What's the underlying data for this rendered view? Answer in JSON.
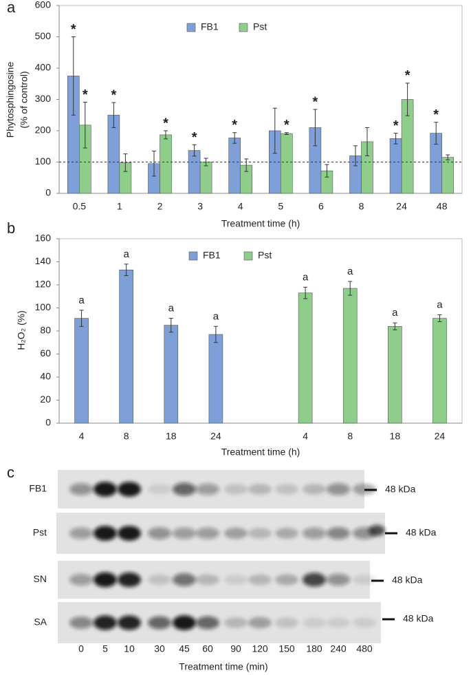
{
  "chart_data": [
    {
      "type": "bar",
      "panel_label": "a",
      "ylabel": [
        "Phytosphingosine",
        "(% of control)"
      ],
      "xlabel": "Treatment time (h)",
      "categories": [
        "0.5",
        "1",
        "2",
        "3",
        "4",
        "5",
        "6",
        "8",
        "24",
        "48"
      ],
      "series": [
        {
          "name": "FB1",
          "color": "#7f9fd8",
          "values": [
            375,
            250,
            95,
            137,
            177,
            200,
            210,
            120,
            175,
            192
          ],
          "errors": [
            125,
            40,
            40,
            18,
            17,
            72,
            58,
            32,
            17,
            35
          ],
          "labels": [
            "*",
            "*",
            null,
            "*",
            "*",
            null,
            "*",
            null,
            "*",
            "*"
          ]
        },
        {
          "name": "Pst",
          "color": "#8fcd8b",
          "values": [
            218,
            98,
            187,
            100,
            90,
            191,
            72,
            165,
            300,
            115
          ],
          "errors": [
            73,
            28,
            13,
            12,
            20,
            3,
            20,
            45,
            52,
            8
          ],
          "labels": [
            "*",
            null,
            "*",
            null,
            null,
            "*",
            null,
            null,
            "*",
            null
          ]
        }
      ],
      "ylim": [
        0,
        600
      ],
      "yticks": [
        0,
        100,
        200,
        300,
        400,
        500,
        600
      ],
      "reference_line": 100,
      "legend": "top"
    },
    {
      "type": "bar",
      "panel_label": "b",
      "ylabel": [
        "H₂O₂ (%)"
      ],
      "xlabel": "Treatment time (h)",
      "categories": [
        "4",
        "8",
        "18",
        "24",
        null,
        "4",
        "8",
        "18",
        "24"
      ],
      "series": [
        {
          "name": "FB1",
          "color": "#7f9fd8",
          "values": [
            91,
            133,
            85,
            77,
            null,
            null,
            null,
            null,
            null
          ],
          "errors": [
            7,
            5,
            6,
            7,
            null,
            null,
            null,
            null,
            null
          ],
          "labels": [
            "a",
            "a",
            "a",
            "a",
            null,
            null,
            null,
            null,
            null
          ]
        },
        {
          "name": "Pst",
          "color": "#8fcd8b",
          "values": [
            null,
            null,
            null,
            null,
            null,
            113,
            117,
            84,
            91
          ],
          "errors": [
            null,
            null,
            null,
            null,
            null,
            5,
            6,
            3,
            3
          ],
          "labels": [
            null,
            null,
            null,
            null,
            null,
            "a",
            "a",
            "a",
            "a"
          ]
        }
      ],
      "ylim": [
        0,
        160
      ],
      "yticks": [
        0,
        20,
        40,
        60,
        80,
        100,
        120,
        140,
        160
      ],
      "legend": "top"
    }
  ],
  "blot": {
    "panel_label": "c",
    "rows": [
      {
        "label": "FB1",
        "marker": "48 kDa"
      },
      {
        "label": "Pst",
        "marker": "48 kDa"
      },
      {
        "label": "SN",
        "marker": "48 kDa"
      },
      {
        "label": "SA",
        "marker": "48 kDa"
      }
    ],
    "lanes": [
      "0",
      "5",
      "10",
      "30",
      "45",
      "60",
      "90",
      "120",
      "150",
      "180",
      "240",
      "480"
    ],
    "xlabel": "Treatment time (min)"
  }
}
